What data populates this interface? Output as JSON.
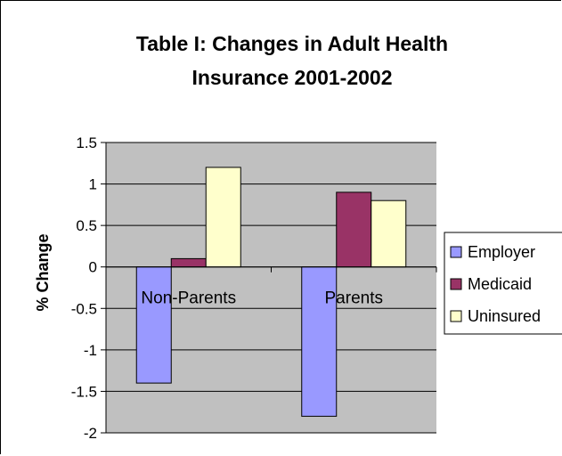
{
  "chart_data": {
    "type": "bar",
    "title_lines": [
      "Table I: Changes in Adult Health",
      "Insurance 2001-2002"
    ],
    "xlabel": "",
    "ylabel": "% Change",
    "categories": [
      "Non-Parents",
      "Parents"
    ],
    "series": [
      {
        "name": "Employer",
        "values": [
          -1.4,
          -1.8
        ],
        "color": "#9999ff"
      },
      {
        "name": "Medicaid",
        "values": [
          0.1,
          0.9
        ],
        "color": "#993366"
      },
      {
        "name": "Uninsured",
        "values": [
          1.2,
          0.8
        ],
        "color": "#ffffcc"
      }
    ],
    "ylim": [
      -2,
      1.5
    ],
    "yticks": [
      "1.5",
      "1",
      "0.5",
      "0",
      "-0.5",
      "-1",
      "-1.5",
      "-2"
    ],
    "grid": true,
    "plot_background": "#c0c0c0",
    "legend_position": "right"
  }
}
